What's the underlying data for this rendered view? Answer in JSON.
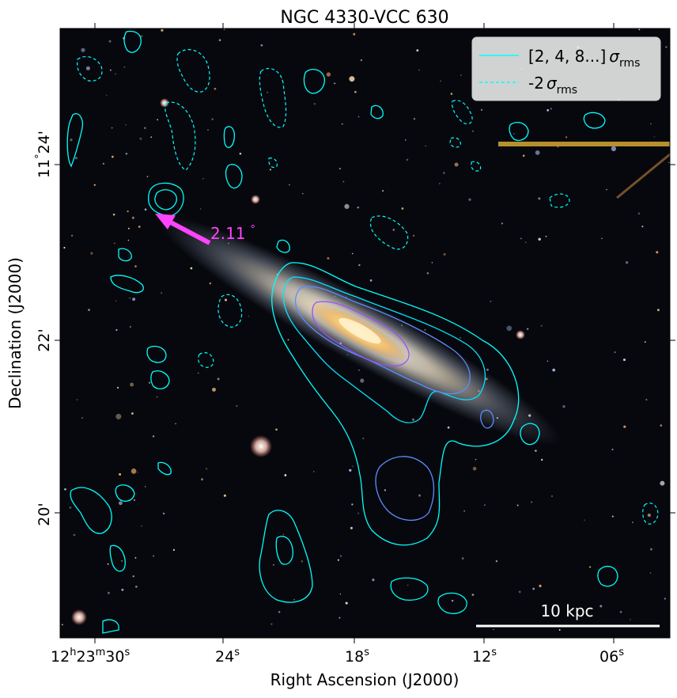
{
  "title": "NGC 4330-VCC 630",
  "xlabel": "Right Ascension (J2000)",
  "ylabel": "Declination (J2000)",
  "x_ticks": [
    {
      "h": "12",
      "m": "23",
      "s": "30",
      "full": true
    },
    {
      "s": "24"
    },
    {
      "s": "18"
    },
    {
      "s": "12"
    },
    {
      "s": "06"
    }
  ],
  "y_ticks": [
    {
      "d": "11",
      "m": "24",
      "full": true
    },
    {
      "m": "22"
    },
    {
      "m": "20"
    }
  ],
  "legend": {
    "pos_label_prefix": "[2, 4, 8...]",
    "neg_label_prefix": "-2",
    "sigma": "σ",
    "sub": "rms"
  },
  "annotation": {
    "angle": "2.11",
    "unit": "°"
  },
  "scalebar": {
    "label": "10 kpc"
  },
  "colors": {
    "contour_low": "#00ffff",
    "contour_mid": "#5b8dff",
    "contour_high": "#9b4dff",
    "arrow": "#ff44ff",
    "sky": "#07080d"
  }
}
